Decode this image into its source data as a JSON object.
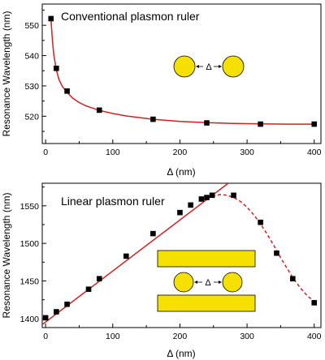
{
  "chart_data": [
    {
      "type": "scatter",
      "title": "Conventional plasmon ruler",
      "xlabel": "Δ (nm)",
      "ylabel": "Resonance Wavelength (nm)",
      "xlim": [
        -5,
        410
      ],
      "ylim": [
        511,
        557
      ],
      "xticks": [
        0,
        100,
        200,
        300,
        400
      ],
      "yticks": [
        520,
        530,
        540,
        550
      ],
      "x_tick_labels": [
        "0",
        "100",
        "200",
        "300",
        "400"
      ],
      "y_tick_labels": [
        "520",
        "530",
        "540",
        "550"
      ],
      "series": [
        {
          "style": "markers",
          "x": [
            8,
            16,
            32,
            80,
            160,
            240,
            320,
            400
          ],
          "y": [
            552.2,
            535.8,
            528.3,
            522.0,
            519.0,
            517.8,
            517.4,
            517.4
          ]
        },
        {
          "style": "fit-curve",
          "x": [
            8,
            10,
            12,
            16,
            20,
            25,
            32,
            40,
            50,
            60,
            80,
            100,
            120,
            160,
            200,
            240,
            280,
            320,
            360,
            400
          ],
          "y": [
            552.0,
            545.5,
            540.5,
            535.2,
            532.0,
            529.8,
            527.9,
            526.0,
            524.5,
            523.4,
            521.9,
            520.9,
            520.1,
            519.0,
            518.3,
            517.9,
            517.6,
            517.5,
            517.4,
            517.4
          ]
        }
      ],
      "colors": {
        "markers": "#000000",
        "fit": "#cc2222",
        "particle": "#f5e000"
      }
    },
    {
      "type": "scatter",
      "title": "Linear plasmon ruler",
      "xlabel": "Δ (nm)",
      "ylabel": "Resonance Wavelength (nm)",
      "xlim": [
        -5,
        410
      ],
      "ylim": [
        1388,
        1580
      ],
      "xticks": [
        0,
        100,
        200,
        300,
        400
      ],
      "yticks": [
        1400,
        1450,
        1500,
        1550
      ],
      "x_tick_labels": [
        "0",
        "100",
        "200",
        "300",
        "400"
      ],
      "y_tick_labels": [
        "1400",
        "1450",
        "1500",
        "1550"
      ],
      "series": [
        {
          "style": "markers",
          "x": [
            0,
            16,
            32,
            64,
            80,
            120,
            160,
            200,
            216,
            232,
            240,
            248,
            280,
            320,
            344,
            368,
            400
          ],
          "y": [
            1401,
            1409,
            1419,
            1439,
            1453,
            1483,
            1513,
            1541,
            1551,
            1559,
            1561,
            1564,
            1564,
            1528,
            1487,
            1453,
            1421
          ]
        },
        {
          "style": "linear-fit",
          "x": [
            -5,
            272
          ],
          "y": [
            1392,
            1580
          ]
        },
        {
          "style": "dashed-fit",
          "x": [
            240,
            250,
            260,
            270,
            280,
            290,
            300,
            310,
            320,
            330,
            340,
            350,
            360,
            370,
            380,
            390,
            400
          ],
          "y": [
            1560,
            1563,
            1565,
            1564,
            1561,
            1556,
            1548,
            1538,
            1526,
            1512,
            1497,
            1481,
            1466,
            1452,
            1440,
            1430,
            1423
          ]
        }
      ],
      "colors": {
        "markers": "#000000",
        "fit": "#cc2222",
        "particle": "#f5e000"
      }
    }
  ],
  "inset_label": "Δ"
}
